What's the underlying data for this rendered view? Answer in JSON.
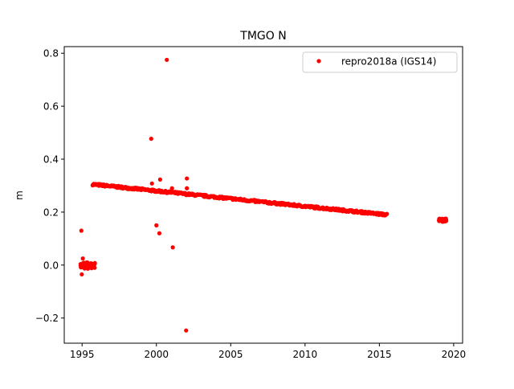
{
  "chart_data": {
    "type": "scatter",
    "title": "TMGO N",
    "xlabel": "",
    "ylabel": "m",
    "xlim": [
      1993.8,
      2020.6
    ],
    "ylim": [
      -0.295,
      0.825
    ],
    "x_ticks": [
      1995,
      2000,
      2005,
      2010,
      2015,
      2020
    ],
    "x_tick_labels": [
      "1995",
      "2000",
      "2005",
      "2010",
      "2015",
      "2020"
    ],
    "y_ticks": [
      -0.2,
      0.0,
      0.2,
      0.4,
      0.6,
      0.8
    ],
    "y_tick_labels": [
      "−0.2",
      "0.0",
      "0.2",
      "0.4",
      "0.6",
      "0.8"
    ],
    "grid": false,
    "legend": {
      "placement": "top-right",
      "entries": [
        "repro2018a (IGS14)"
      ]
    },
    "series": [
      {
        "name": "repro2018a (IGS14)",
        "color": "#ff0000",
        "marker": "circle",
        "segments": [
          {
            "x_start": 1995.7,
            "x_end": 2015.5,
            "y_start": 0.305,
            "y_end": 0.19
          }
        ],
        "clusters": [
          {
            "x_start": 1994.9,
            "x_end": 1995.9,
            "y_center": -0.002,
            "spread": 0.012
          },
          {
            "x_start": 2019.0,
            "x_end": 2019.5,
            "y_center": 0.17,
            "spread": 0.006
          }
        ],
        "x": [
          1994.95,
          1995.05,
          1994.98,
          1995.1,
          2000.7,
          1999.65,
          2000.25,
          1999.7,
          2002.05,
          2002.05,
          2001.05,
          2000.0,
          2000.2,
          2001.1,
          2002.0
        ],
        "y": [
          0.13,
          0.025,
          -0.035,
          0.005,
          0.775,
          0.477,
          0.323,
          0.308,
          0.327,
          0.29,
          0.29,
          0.15,
          0.12,
          0.067,
          -0.247
        ]
      }
    ]
  }
}
